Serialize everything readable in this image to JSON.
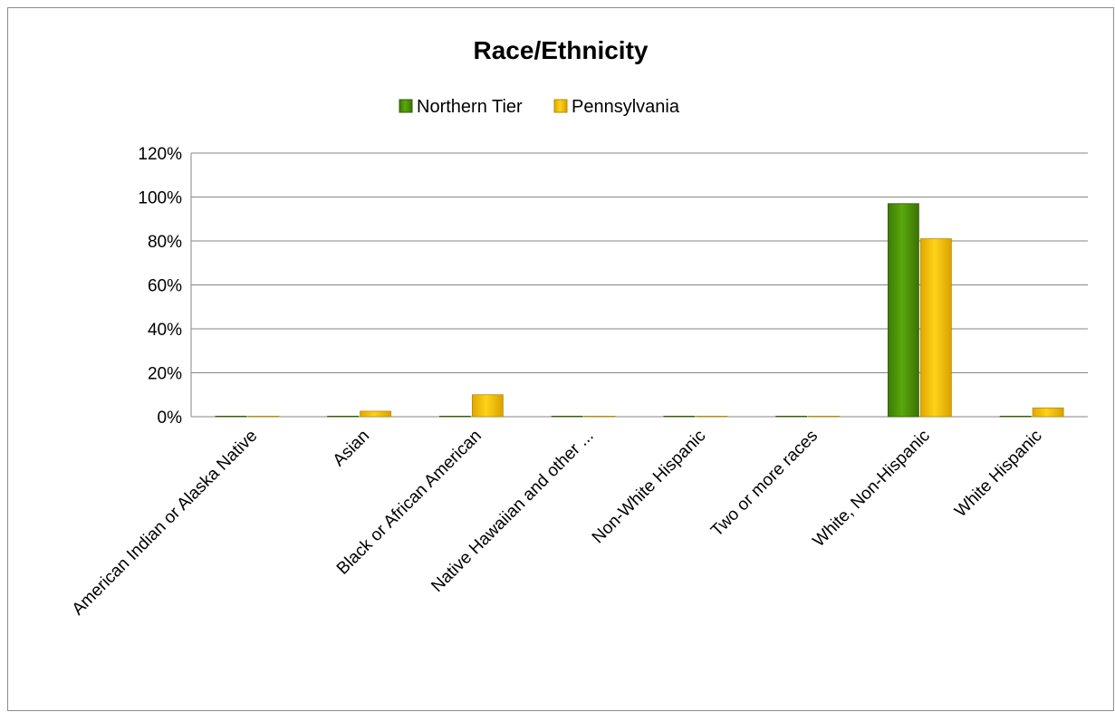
{
  "chart_data": {
    "type": "bar",
    "title": "Race/Ethnicity",
    "xlabel": "",
    "ylabel": "",
    "categories": [
      "American Indian or Alaska Native",
      "Asian",
      "Black or African American",
      "Native Hawaiian and other ...",
      "Non-White Hispanic",
      "Two or more races",
      "White, Non-Hispanic",
      "White Hispanic"
    ],
    "series": [
      {
        "name": "Northern Tier",
        "color": "#4e9a06",
        "values": [
          0.001,
          0.002,
          0.002,
          0.0,
          0.001,
          0.001,
          0.97,
          0.001
        ]
      },
      {
        "name": "Pennsylvania",
        "color": "#f5c400",
        "values": [
          0.001,
          0.025,
          0.1,
          0.0,
          0.001,
          0.002,
          0.81,
          0.04
        ]
      }
    ],
    "ylim": [
      0,
      1.2
    ],
    "yticks": [
      0,
      0.2,
      0.4,
      0.6,
      0.8,
      1.0,
      1.2
    ],
    "ytick_labels": [
      "0%",
      "20%",
      "40%",
      "60%",
      "80%",
      "100%",
      "120%"
    ],
    "grid": true,
    "legend_position": "top"
  }
}
